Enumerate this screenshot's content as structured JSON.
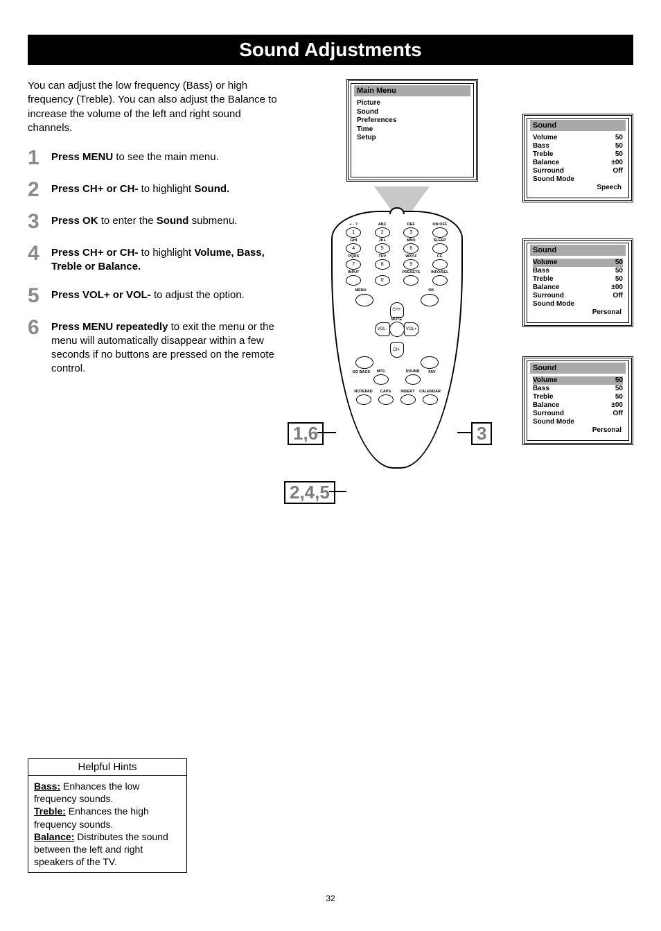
{
  "title": "Sound Adjustments",
  "intro": "You can adjust the low frequency (Bass) or high frequency (Treble). You can also adjust the Balance to increase the volume of the left and right sound channels.",
  "steps": [
    {
      "num": "1",
      "bold": "Press MENU",
      "rest": " to see the main menu."
    },
    {
      "num": "2",
      "bold": "Press CH+ or CH-",
      "rest": " to highlight ",
      "bold2": "Sound."
    },
    {
      "num": "3",
      "bold": "Press OK",
      "rest": " to enter the ",
      "bold2": "Sound",
      "rest2": " submenu."
    },
    {
      "num": "4",
      "bold": "Press CH+ or CH-",
      "rest": " to highlight ",
      "bold2": "Volume, Bass, Treble or Balance."
    },
    {
      "num": "5",
      "bold": "Press VOL+ or VOL-",
      "rest": " to adjust the option."
    },
    {
      "num": "6",
      "bold": "Press MENU repeatedly",
      "rest": " to exit the menu or the menu will automatically disappear within a few seconds if no buttons are pressed on the remote control."
    }
  ],
  "main_menu": {
    "header": "Main Menu",
    "items": [
      "Picture",
      "Sound",
      "Preferences",
      "Time",
      "Setup"
    ],
    "selected_index": 1
  },
  "sound_panels": [
    {
      "header": "Sound",
      "rows": [
        [
          "Volume",
          "50"
        ],
        [
          "Bass",
          "50"
        ],
        [
          "Treble",
          "50"
        ],
        [
          "Balance",
          "±00"
        ],
        [
          "Surround",
          "Off"
        ],
        [
          "Sound Mode",
          ""
        ]
      ],
      "mode": "Speech",
      "hl": -1
    },
    {
      "header": "Sound",
      "rows": [
        [
          "Volume",
          "50"
        ],
        [
          "Bass",
          "50"
        ],
        [
          "Treble",
          "50"
        ],
        [
          "Balance",
          "±00"
        ],
        [
          "Surround",
          "Off"
        ],
        [
          "Sound Mode",
          ""
        ]
      ],
      "mode": "Personal",
      "hl": 0
    },
    {
      "header": "Sound",
      "rows": [
        [
          "Volume",
          "50"
        ],
        [
          "Bass",
          "50"
        ],
        [
          "Treble",
          "50"
        ],
        [
          "Balance",
          "±00"
        ],
        [
          "Surround",
          "Off"
        ],
        [
          "Sound Mode",
          ""
        ]
      ],
      "mode": "Personal",
      "hl": 0
    }
  ],
  "remote": {
    "row1": [
      {
        "n": "1",
        "l": "+ - ?"
      },
      {
        "n": "2",
        "l": "ABC"
      },
      {
        "n": "3",
        "l": "DEF"
      },
      {
        "n": "",
        "l": "ON·OFF"
      }
    ],
    "row2": [
      {
        "n": "4",
        "l": "GHI"
      },
      {
        "n": "5",
        "l": "JKL"
      },
      {
        "n": "6",
        "l": "MNO"
      },
      {
        "n": "",
        "l": "SLEEP"
      }
    ],
    "row3": [
      {
        "n": "7",
        "l": "PQRS"
      },
      {
        "n": "8",
        "l": "TUV"
      },
      {
        "n": "9",
        "l": "WXYZ"
      },
      {
        "n": "",
        "l": "CC"
      }
    ],
    "row4": [
      {
        "n": "",
        "l": "INPUT"
      },
      {
        "n": "0",
        "l": ""
      },
      {
        "n": "",
        "l": "PRESETS"
      },
      {
        "n": "",
        "l": "INFO/SEL"
      }
    ],
    "dpad": {
      "menu": "MENU",
      "ok": "OK",
      "up": "CH+",
      "down": "CH-",
      "left": "VOL-",
      "right": "VOL+",
      "mute": "MUTE",
      "goback": "GO BACK",
      "fav": "FAV"
    },
    "row_mid": [
      {
        "l": "MTS"
      },
      {
        "l": "SOUND"
      }
    ],
    "row_bot": [
      {
        "l": "NOTEPAD"
      },
      {
        "l": "CAPS"
      },
      {
        "l": "INSERT"
      },
      {
        "l": "CALENDAR"
      }
    ]
  },
  "callouts": {
    "c16": "1,6",
    "c245": "2,4,5",
    "c3": "3"
  },
  "hints": {
    "header": "Helpful Hints",
    "items": [
      {
        "term": "Bass:",
        "def": " Enhances the low frequency sounds."
      },
      {
        "term": "Treble:",
        "def": " Enhances the high frequency sounds."
      },
      {
        "term": "Balance:",
        "def": " Distributes the sound between the left and right speakers of the TV."
      }
    ]
  },
  "page_num": "32",
  "colors": {
    "step_num": "#8a8a8a",
    "osd_gray": "#a9a9a9",
    "tri": "#c8c8c8"
  }
}
